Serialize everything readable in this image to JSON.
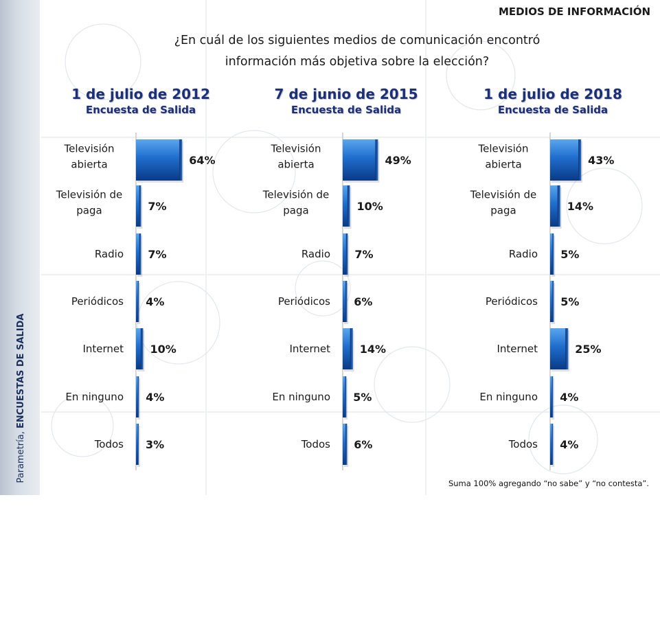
{
  "header": {
    "label": "MEDIOS DE INFORMACIÓN"
  },
  "question": {
    "line1": "¿En cuál de los siguientes medios de comunicación encontró",
    "line2": "información más objetiva sobre la elección?"
  },
  "side_caption": {
    "brand": "Parametría, ",
    "section": "ENCUESTAS DE SALIDA"
  },
  "footnote": "Suma 100% agregando “no sabe” y “no contesta”.",
  "colors": {
    "bar_dark": "#0a3f8f",
    "bar_light": "#3f8fe0",
    "title": "#1b2f7a"
  },
  "chart_data": [
    {
      "type": "bar",
      "orientation": "horizontal",
      "title": "1 de julio de 2012",
      "subtitle": "Encuesta de Salida",
      "categories": [
        [
          "Televisión",
          "abierta"
        ],
        [
          "Televisión de",
          "paga"
        ],
        [
          "Radio"
        ],
        [
          "Periódicos"
        ],
        [
          "Internet"
        ],
        [
          "En ninguno"
        ],
        [
          "Todos"
        ]
      ],
      "values": [
        64,
        7,
        7,
        4,
        10,
        4,
        3
      ],
      "labels": [
        "64%",
        "7%",
        "7%",
        "4%",
        "10%",
        "4%",
        "3%"
      ]
    },
    {
      "type": "bar",
      "orientation": "horizontal",
      "title": "7 de junio de 2015",
      "subtitle": "Encuesta de Salida",
      "categories": [
        [
          "Televisión",
          "abierta"
        ],
        [
          "Televisión de",
          "paga"
        ],
        [
          "Radio"
        ],
        [
          "Periódicos"
        ],
        [
          "Internet"
        ],
        [
          "En ninguno"
        ],
        [
          "Todos"
        ]
      ],
      "values": [
        49,
        10,
        7,
        6,
        14,
        5,
        6
      ],
      "labels": [
        "49%",
        "10%",
        "7%",
        "6%",
        "14%",
        "5%",
        "6%"
      ]
    },
    {
      "type": "bar",
      "orientation": "horizontal",
      "title": "1 de julio de 2018",
      "subtitle": "Encuesta de Salida",
      "categories": [
        [
          "Televisión",
          "abierta"
        ],
        [
          "Televisión de",
          "paga"
        ],
        [
          "Radio"
        ],
        [
          "Periódicos"
        ],
        [
          "Internet"
        ],
        [
          "En ninguno"
        ],
        [
          "Todos"
        ]
      ],
      "values": [
        43,
        14,
        5,
        5,
        25,
        4,
        4
      ],
      "labels": [
        "43%",
        "14%",
        "5%",
        "5%",
        "25%",
        "4%",
        "4%"
      ]
    }
  ]
}
